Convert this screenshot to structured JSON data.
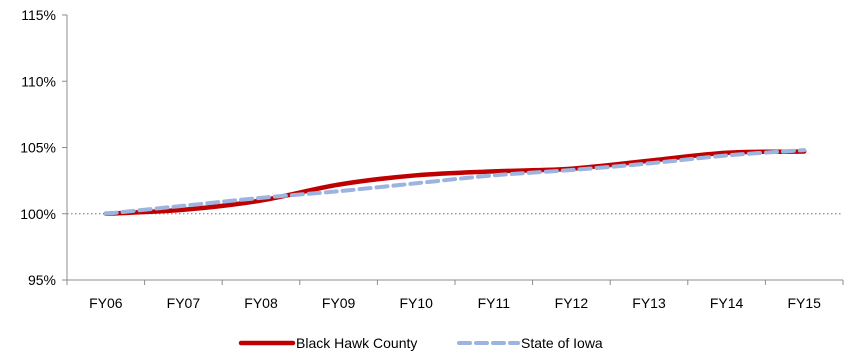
{
  "chart_data": {
    "type": "line",
    "title": "",
    "xlabel": "",
    "ylabel": "",
    "categories": [
      "FY06",
      "FY07",
      "FY08",
      "FY09",
      "FY10",
      "FY11",
      "FY12",
      "FY13",
      "FY14",
      "FY15"
    ],
    "ylim": [
      95,
      115
    ],
    "yticks": [
      95,
      100,
      105,
      110,
      115
    ],
    "ytick_labels": [
      "95%",
      "100%",
      "105%",
      "110%",
      "115%"
    ],
    "reference_line": 100,
    "grid": false,
    "legend_position": "bottom",
    "series": [
      {
        "name": "Black Hawk County",
        "color": "#C00000",
        "style": "solid",
        "values": [
          100.0,
          100.3,
          101.0,
          102.2,
          102.9,
          103.2,
          103.4,
          104.0,
          104.6,
          104.7
        ]
      },
      {
        "name": "State of Iowa",
        "color": "#9DB3E0",
        "style": "dashed",
        "values": [
          100.0,
          100.6,
          101.2,
          101.7,
          102.3,
          102.9,
          103.3,
          103.8,
          104.4,
          104.8
        ]
      }
    ]
  }
}
